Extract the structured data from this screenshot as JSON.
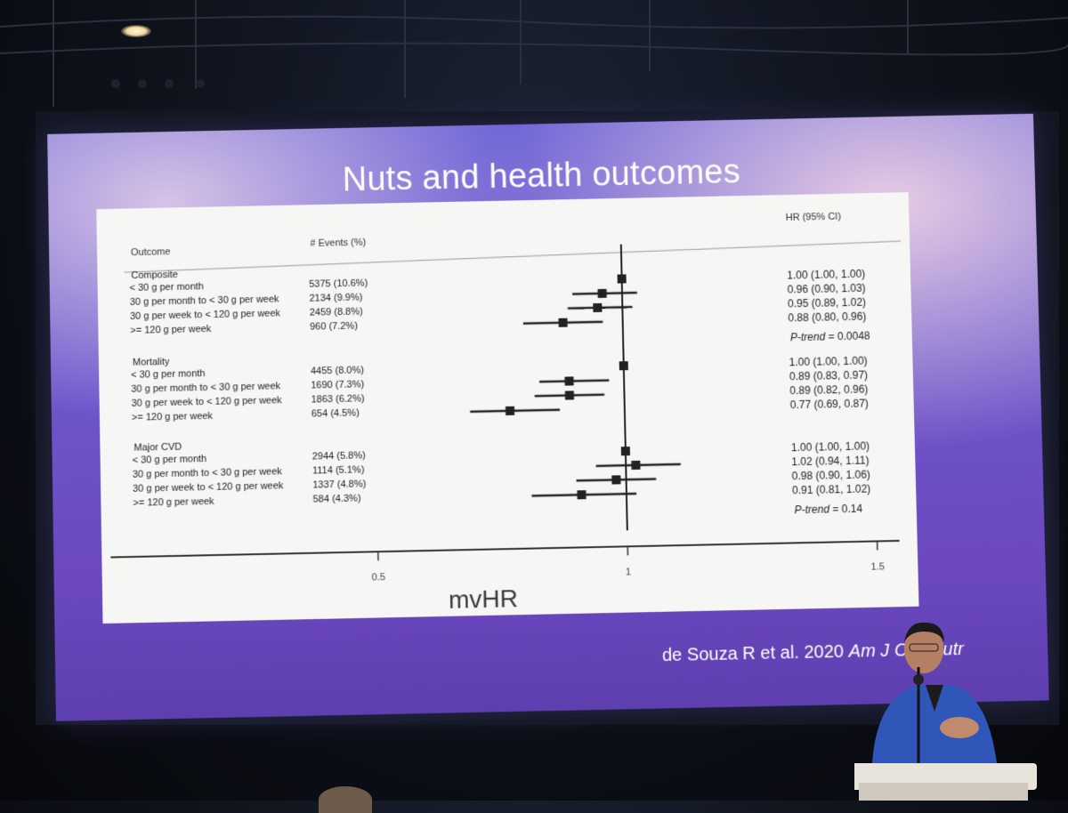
{
  "slide": {
    "title": "Nuts and health outcomes",
    "citation_authors": "de Souza R et al. 2020",
    "citation_journal": "Am J Clin Nutr"
  },
  "table": {
    "headers": {
      "outcome": "Outcome",
      "events": "# Events (%)",
      "hr": "HR (95% CI)"
    },
    "groups": [
      {
        "name": "Composite",
        "p_trend_label": "P-trend",
        "p_trend_value": "= 0.0048",
        "rows": [
          {
            "label": "< 30 g per month",
            "events": "5375 (10.6%)",
            "hr_ci": "1.00 (1.00, 1.00)"
          },
          {
            "label": "30 g per month to < 30 g per week",
            "events": "2134 (9.9%)",
            "hr_ci": "0.96 (0.90, 1.03)"
          },
          {
            "label": "30 g per week to < 120 g per week",
            "events": "2459 (8.8%)",
            "hr_ci": "0.95 (0.89, 1.02)"
          },
          {
            "label": ">= 120 g per week",
            "events": "960 (7.2%)",
            "hr_ci": "0.88 (0.80, 0.96)"
          }
        ]
      },
      {
        "name": "Mortality",
        "p_trend_label": "",
        "p_trend_value": "",
        "rows": [
          {
            "label": "< 30 g per month",
            "events": "4455 (8.0%)",
            "hr_ci": "1.00 (1.00, 1.00)"
          },
          {
            "label": "30 g per month to < 30 g per week",
            "events": "1690 (7.3%)",
            "hr_ci": "0.89 (0.83, 0.97)"
          },
          {
            "label": "30 g per week to < 120 g per week",
            "events": "1863 (6.2%)",
            "hr_ci": "0.89 (0.82, 0.96)"
          },
          {
            "label": ">= 120 g per week",
            "events": "654 (4.5%)",
            "hr_ci": "0.77 (0.69, 0.87)"
          }
        ]
      },
      {
        "name": "Major CVD",
        "p_trend_label": "P-trend",
        "p_trend_value": "= 0.14",
        "rows": [
          {
            "label": "< 30 g per month",
            "events": "2944 (5.8%)",
            "hr_ci": "1.00 (1.00, 1.00)"
          },
          {
            "label": "30 g per month to < 30 g per week",
            "events": "1114 (5.1%)",
            "hr_ci": "1.02 (0.94, 1.11)"
          },
          {
            "label": "30 g per week to < 120 g per week",
            "events": "1337 (4.8%)",
            "hr_ci": "0.98 (0.90, 1.06)"
          },
          {
            "label": ">= 120 g per week",
            "events": "584 (4.3%)",
            "hr_ci": "0.91 (0.81, 1.02)"
          }
        ]
      }
    ]
  },
  "chart_data": {
    "type": "scatter",
    "subtype": "forest-plot",
    "xlabel": "mvHR",
    "xticks": [
      "0.5",
      "1",
      "1.5"
    ],
    "xlim": [
      0.3,
      1.8
    ],
    "reference_line": 1,
    "series": [
      {
        "name": "Composite",
        "points": [
          {
            "hr": 1.0,
            "lo": 1.0,
            "hi": 1.0
          },
          {
            "hr": 0.96,
            "lo": 0.9,
            "hi": 1.03
          },
          {
            "hr": 0.95,
            "lo": 0.89,
            "hi": 1.02
          },
          {
            "hr": 0.88,
            "lo": 0.8,
            "hi": 0.96
          }
        ]
      },
      {
        "name": "Mortality",
        "points": [
          {
            "hr": 1.0,
            "lo": 1.0,
            "hi": 1.0
          },
          {
            "hr": 0.89,
            "lo": 0.83,
            "hi": 0.97
          },
          {
            "hr": 0.89,
            "lo": 0.82,
            "hi": 0.96
          },
          {
            "hr": 0.77,
            "lo": 0.69,
            "hi": 0.87
          }
        ]
      },
      {
        "name": "Major CVD",
        "points": [
          {
            "hr": 1.0,
            "lo": 1.0,
            "hi": 1.0
          },
          {
            "hr": 1.02,
            "lo": 0.94,
            "hi": 1.11
          },
          {
            "hr": 0.98,
            "lo": 0.9,
            "hi": 1.06
          },
          {
            "hr": 0.91,
            "lo": 0.81,
            "hi": 1.02
          }
        ]
      }
    ]
  }
}
